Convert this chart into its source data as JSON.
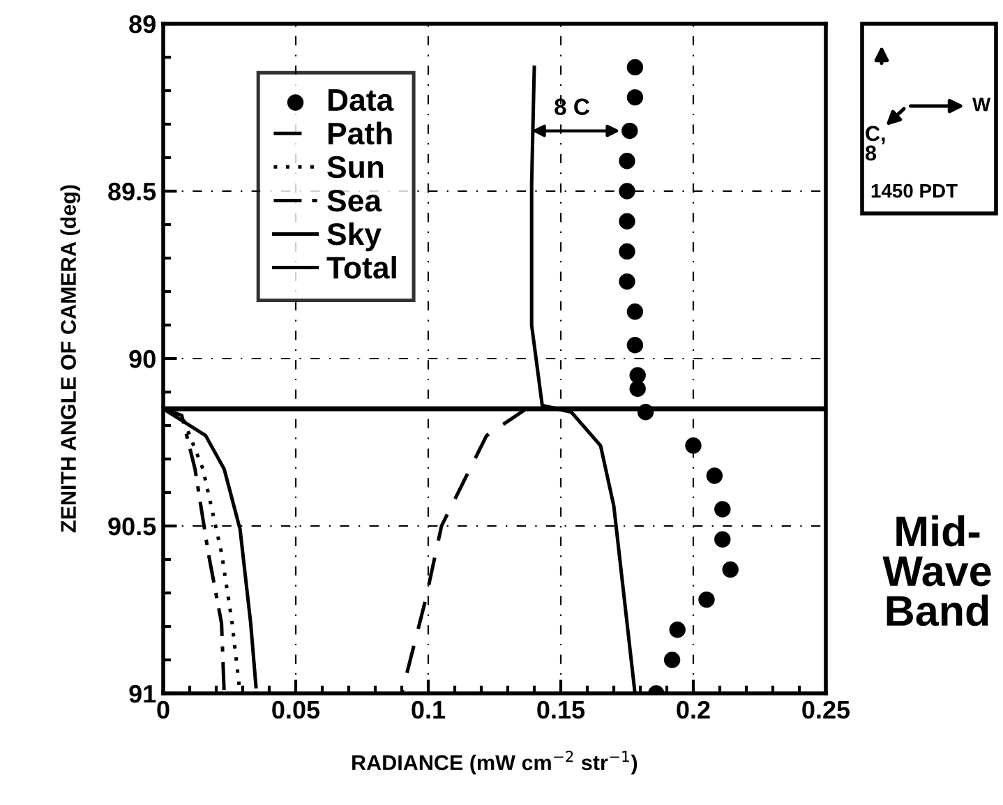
{
  "chart_data": {
    "type": "line",
    "xlabel": "RADIANCE (mW cm$^{−2}$ str$^{−1}$)",
    "ylabel": "ZENITH ANGLE OF CAMERA (deg)",
    "xlim": [
      0,
      0.25
    ],
    "xticks": [
      0,
      0.05,
      0.1,
      0.15,
      0.2,
      0.25
    ],
    "ylim": [
      91,
      89
    ],
    "yticks": [
      89,
      89.5,
      90,
      90.5,
      91
    ],
    "grid": true,
    "legend": "top left",
    "series": [
      {
        "name": "Data",
        "type": "scatter",
        "marker": "circle",
        "color": "#000000",
        "x": [
          0.178,
          0.178,
          0.176,
          0.175,
          0.175,
          0.175,
          0.175,
          0.175,
          0.178,
          0.178,
          0.179,
          0.179,
          0.182,
          0.2,
          0.208,
          0.211,
          0.211,
          0.214,
          0.205,
          0.194,
          0.192,
          0.186
        ],
        "values": [
          89.13,
          89.22,
          89.32,
          89.41,
          89.5,
          89.59,
          89.68,
          89.77,
          89.86,
          89.96,
          90.05,
          90.09,
          90.16,
          90.26,
          90.35,
          90.45,
          90.54,
          90.63,
          90.72,
          90.81,
          90.9,
          91.0
        ]
      },
      {
        "name": "Path",
        "line_style": "dashed",
        "color": "#000000",
        "x": [
          0.137,
          0.122,
          0.105,
          0.099,
          0.09
        ],
        "values": [
          90.15,
          90.23,
          90.5,
          90.72,
          91.0
        ]
      },
      {
        "name": "Sun",
        "line_style": "dotted",
        "color": "#000000",
        "x": [
          0,
          0.007,
          0.015,
          0.022,
          0.026,
          0.029
        ],
        "values": [
          90.15,
          90.17,
          90.33,
          90.58,
          90.79,
          91.0
        ]
      },
      {
        "name": "Sea",
        "line_style": "dashdot",
        "color": "#000000",
        "x": [
          0,
          0.007,
          0.012,
          0.017,
          0.022,
          0.023
        ],
        "values": [
          90.15,
          90.17,
          90.33,
          90.58,
          90.79,
          91.0
        ]
      },
      {
        "name": "Sky",
        "line_style": "solid",
        "color": "#000000",
        "x": [
          0,
          0.016,
          0.023,
          0.029,
          0.033,
          0.035
        ],
        "values": [
          90.15,
          90.23,
          90.33,
          90.51,
          90.79,
          90.98
        ]
      },
      {
        "name": "Total",
        "line_style": "solid",
        "color": "#000000",
        "x": [
          0.14,
          0.139,
          0.139,
          0.143,
          0.154,
          0.165,
          0.17,
          0.174,
          0.178
        ],
        "values": [
          89.13,
          89.48,
          89.9,
          90.14,
          90.16,
          90.26,
          90.44,
          90.72,
          91.0
        ]
      }
    ],
    "ref_lines": [
      {
        "axis": "y",
        "value": 90.15,
        "color": "#000000",
        "line_style": "solid"
      }
    ],
    "annotations": [
      "8 C",
      "C,",
      "8",
      "W",
      "1450 PDT",
      "Mid-\nWave\nBand"
    ]
  }
}
